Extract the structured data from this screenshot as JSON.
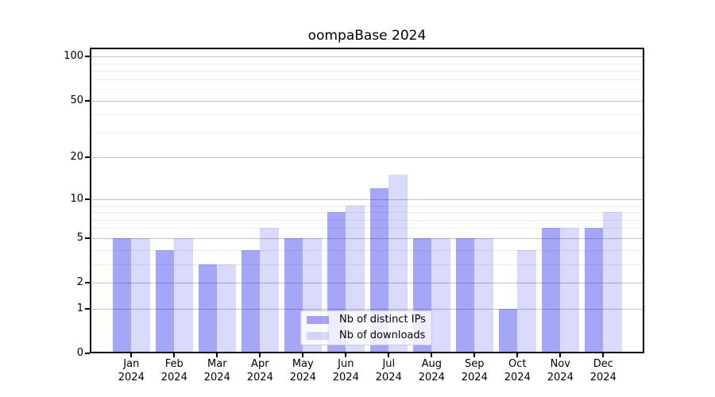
{
  "title": "oompaBase 2024",
  "colors": {
    "bar_distinct_ips": "rgba(0,0,235,0.35)",
    "bar_downloads": "rgba(0,0,235,0.15)",
    "grid_major": "#c2c2c2",
    "grid_minor": "#ececec",
    "axis": "#000000"
  },
  "chart_data": {
    "type": "bar",
    "title": "oompaBase 2024",
    "categories": [
      "Jan",
      "Feb",
      "Mar",
      "Apr",
      "May",
      "Jun",
      "Jul",
      "Aug",
      "Sep",
      "Oct",
      "Nov",
      "Dec"
    ],
    "year": "2024",
    "series": [
      {
        "name": "Nb of distinct IPs",
        "color": "rgba(0,0,235,0.35)",
        "values": [
          5,
          4,
          3,
          4,
          5,
          8,
          12,
          5,
          5,
          1,
          6,
          6
        ]
      },
      {
        "name": "Nb of downloads",
        "color": "rgba(0,0,235,0.15)",
        "values": [
          5,
          5,
          3,
          6,
          5,
          9,
          15,
          5,
          5,
          4,
          6,
          8
        ]
      }
    ],
    "xlabel": "",
    "ylabel": "",
    "y_scale": "log1p",
    "ylim": [
      0,
      115
    ],
    "y_major_ticks": [
      0,
      1,
      2,
      5,
      10,
      20,
      50,
      100
    ],
    "y_minor_gridlines": [
      3,
      4,
      6,
      7,
      8,
      9,
      30,
      40,
      60,
      70,
      80,
      90
    ],
    "grid": true,
    "legend_position": "bottom-center"
  },
  "legend": {
    "entries": [
      "Nb of distinct IPs",
      "Nb of downloads"
    ]
  }
}
